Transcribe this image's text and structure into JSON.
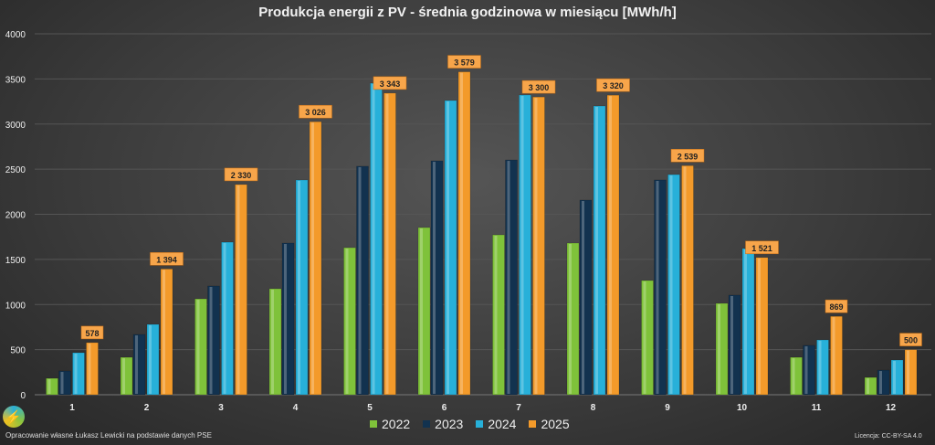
{
  "chart_data": {
    "type": "bar",
    "title": "Produkcja energii z PV - średnia godzinowa w miesiącu [MWh/h]",
    "categories": [
      "1",
      "2",
      "3",
      "4",
      "5",
      "6",
      "7",
      "8",
      "9",
      "10",
      "11",
      "12"
    ],
    "ylim": [
      0,
      4000
    ],
    "yticks": [
      0,
      500,
      1000,
      1500,
      2000,
      2500,
      3000,
      3500,
      4000
    ],
    "grid": true,
    "legend_position": "bottom",
    "series": [
      {
        "name": "2022",
        "color": "#7fc23a",
        "values": [
          182,
          415,
          1063,
          1175,
          1630,
          1853,
          1772,
          1681,
          1266,
          1013,
          415,
          192
        ]
      },
      {
        "name": "2023",
        "color": "#12324f",
        "values": [
          263,
          668,
          1205,
          1681,
          2532,
          2592,
          2602,
          2157,
          2380,
          1104,
          547,
          273
        ]
      },
      {
        "name": "2024",
        "color": "#27b0d9",
        "values": [
          466,
          780,
          1691,
          2380,
          3453,
          3261,
          3322,
          3200,
          2440,
          1620,
          608,
          385
        ]
      },
      {
        "name": "2025",
        "color": "#f39a2a",
        "values": [
          578,
          1394,
          2330,
          3026,
          3343,
          3579,
          3300,
          3320,
          2539,
          1521,
          869,
          500
        ],
        "labels": [
          "578",
          "1 394",
          "2 330",
          "3 026",
          "3 343",
          "3 579",
          "3 300",
          "3 320",
          "2 539",
          "1 521",
          "869",
          "500"
        ]
      }
    ]
  },
  "footer": {
    "credit": "Opracowanie własne Łukasz Lewicki na podstawie danych PSE",
    "license": "Licencja: CC-BY-SA 4.0"
  },
  "logo": {
    "icon": "lightning-icon"
  }
}
